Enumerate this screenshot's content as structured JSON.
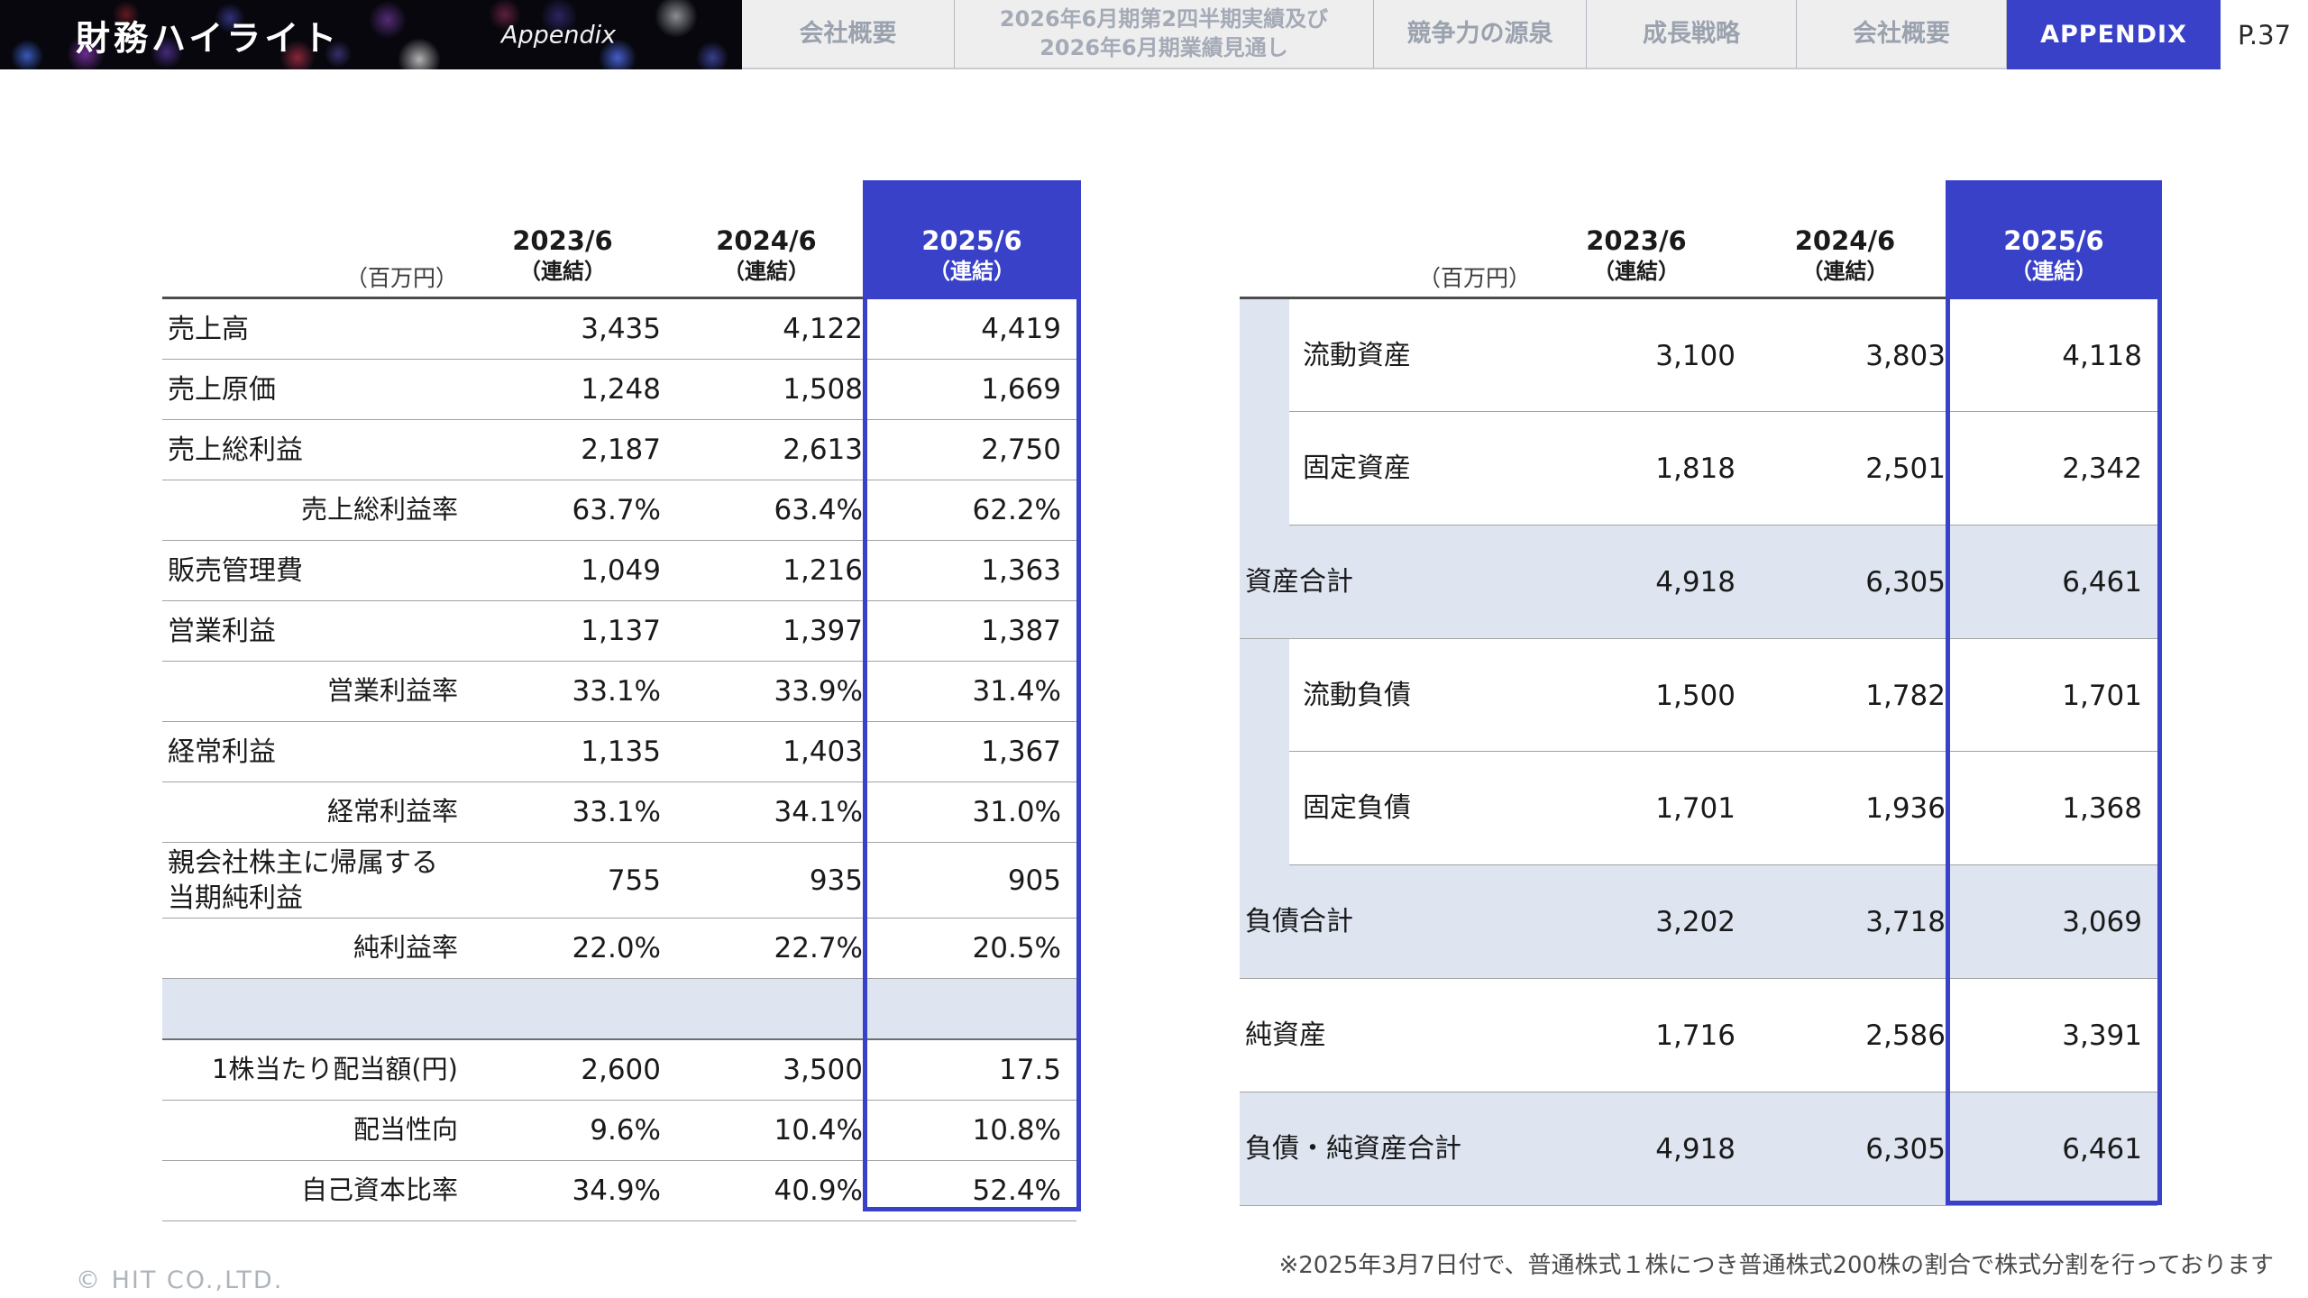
{
  "nav": {
    "title": "財務ハイライト",
    "subtitle": "Appendix",
    "tabs": [
      {
        "label": "会社概要",
        "active": false
      },
      {
        "label": "2026年6月期第2四半期実績及び\n2026年6月期業績見通し",
        "active": false
      },
      {
        "label": "競争力の源泉",
        "active": false
      },
      {
        "label": "成長戦略",
        "active": false
      },
      {
        "label": "会社概要",
        "active": false
      },
      {
        "label": "APPENDIX",
        "active": true
      }
    ],
    "page_number": "P.37"
  },
  "pl_table": {
    "unit_label": "（百万円）",
    "columns": [
      {
        "year": "2023/6",
        "note": "（連結）",
        "highlight": false
      },
      {
        "year": "2024/6",
        "note": "（連結）",
        "highlight": false
      },
      {
        "year": "2025/6",
        "note": "（連結）",
        "highlight": true
      }
    ],
    "rows": [
      {
        "label": "売上高",
        "indent": false,
        "spacer": false,
        "values": [
          "3,435",
          "4,122",
          "4,419"
        ]
      },
      {
        "label": "売上原価",
        "indent": false,
        "spacer": false,
        "values": [
          "1,248",
          "1,508",
          "1,669"
        ]
      },
      {
        "label": "売上総利益",
        "indent": false,
        "spacer": false,
        "values": [
          "2,187",
          "2,613",
          "2,750"
        ]
      },
      {
        "label": "売上総利益率",
        "indent": true,
        "spacer": false,
        "values": [
          "63.7%",
          "63.4%",
          "62.2%"
        ]
      },
      {
        "label": "販売管理費",
        "indent": false,
        "spacer": false,
        "values": [
          "1,049",
          "1,216",
          "1,363"
        ]
      },
      {
        "label": "営業利益",
        "indent": false,
        "spacer": false,
        "values": [
          "1,137",
          "1,397",
          "1,387"
        ]
      },
      {
        "label": "営業利益率",
        "indent": true,
        "spacer": false,
        "values": [
          "33.1%",
          "33.9%",
          "31.4%"
        ]
      },
      {
        "label": "経常利益",
        "indent": false,
        "spacer": false,
        "values": [
          "1,135",
          "1,403",
          "1,367"
        ]
      },
      {
        "label": "経常利益率",
        "indent": true,
        "spacer": false,
        "values": [
          "33.1%",
          "34.1%",
          "31.0%"
        ]
      },
      {
        "label": "親会社株主に帰属する\n当期純利益",
        "indent": false,
        "spacer": false,
        "values": [
          "755",
          "935",
          "905"
        ]
      },
      {
        "label": "純利益率",
        "indent": true,
        "spacer": false,
        "values": [
          "22.0%",
          "22.7%",
          "20.5%"
        ]
      },
      {
        "label": "",
        "indent": false,
        "spacer": true,
        "values": [
          "",
          "",
          ""
        ]
      },
      {
        "label": "1株当たり配当額(円)",
        "indent": true,
        "spacer": false,
        "values": [
          "2,600",
          "3,500",
          "17.5"
        ]
      },
      {
        "label": "配当性向",
        "indent": true,
        "spacer": false,
        "values": [
          "9.6%",
          "10.4%",
          "10.8%"
        ]
      },
      {
        "label": "自己資本比率",
        "indent": true,
        "spacer": false,
        "values": [
          "34.9%",
          "40.9%",
          "52.4%"
        ]
      }
    ]
  },
  "bs_table": {
    "unit_label": "（百万円）",
    "columns": [
      {
        "year": "2023/6",
        "note": "（連結）",
        "highlight": false
      },
      {
        "year": "2024/6",
        "note": "（連結）",
        "highlight": false
      },
      {
        "year": "2025/6",
        "note": "（連結）",
        "highlight": true
      }
    ],
    "rows": [
      {
        "label": "流動資産",
        "grouped": true,
        "subtotal": false,
        "values": [
          "3,100",
          "3,803",
          "4,118"
        ]
      },
      {
        "label": "固定資産",
        "grouped": true,
        "subtotal": false,
        "values": [
          "1,818",
          "2,501",
          "2,342"
        ]
      },
      {
        "label": "資産合計",
        "grouped": false,
        "subtotal": true,
        "values": [
          "4,918",
          "6,305",
          "6,461"
        ]
      },
      {
        "label": "流動負債",
        "grouped": true,
        "subtotal": false,
        "values": [
          "1,500",
          "1,782",
          "1,701"
        ]
      },
      {
        "label": "固定負債",
        "grouped": true,
        "subtotal": false,
        "values": [
          "1,701",
          "1,936",
          "1,368"
        ]
      },
      {
        "label": "負債合計",
        "grouped": false,
        "subtotal": true,
        "values": [
          "3,202",
          "3,718",
          "3,069"
        ]
      },
      {
        "label": "純資産",
        "grouped": false,
        "subtotal": false,
        "values": [
          "1,716",
          "2,586",
          "3,391"
        ]
      },
      {
        "label": "負債・純資産合計",
        "grouped": false,
        "subtotal": true,
        "values": [
          "4,918",
          "6,305",
          "6,461"
        ]
      }
    ]
  },
  "footnote": "※2025年3月7日付で、普通株式１株につき普通株式200株の割合で株式分割を行っております",
  "copyright": "© HIT CO.,LTD.",
  "colors": {
    "accent_blue": "#3941C8",
    "shaded_row": "#DEE5F1",
    "nav_background": "#EEEEEF",
    "nav_text": "#9AA2AE"
  }
}
